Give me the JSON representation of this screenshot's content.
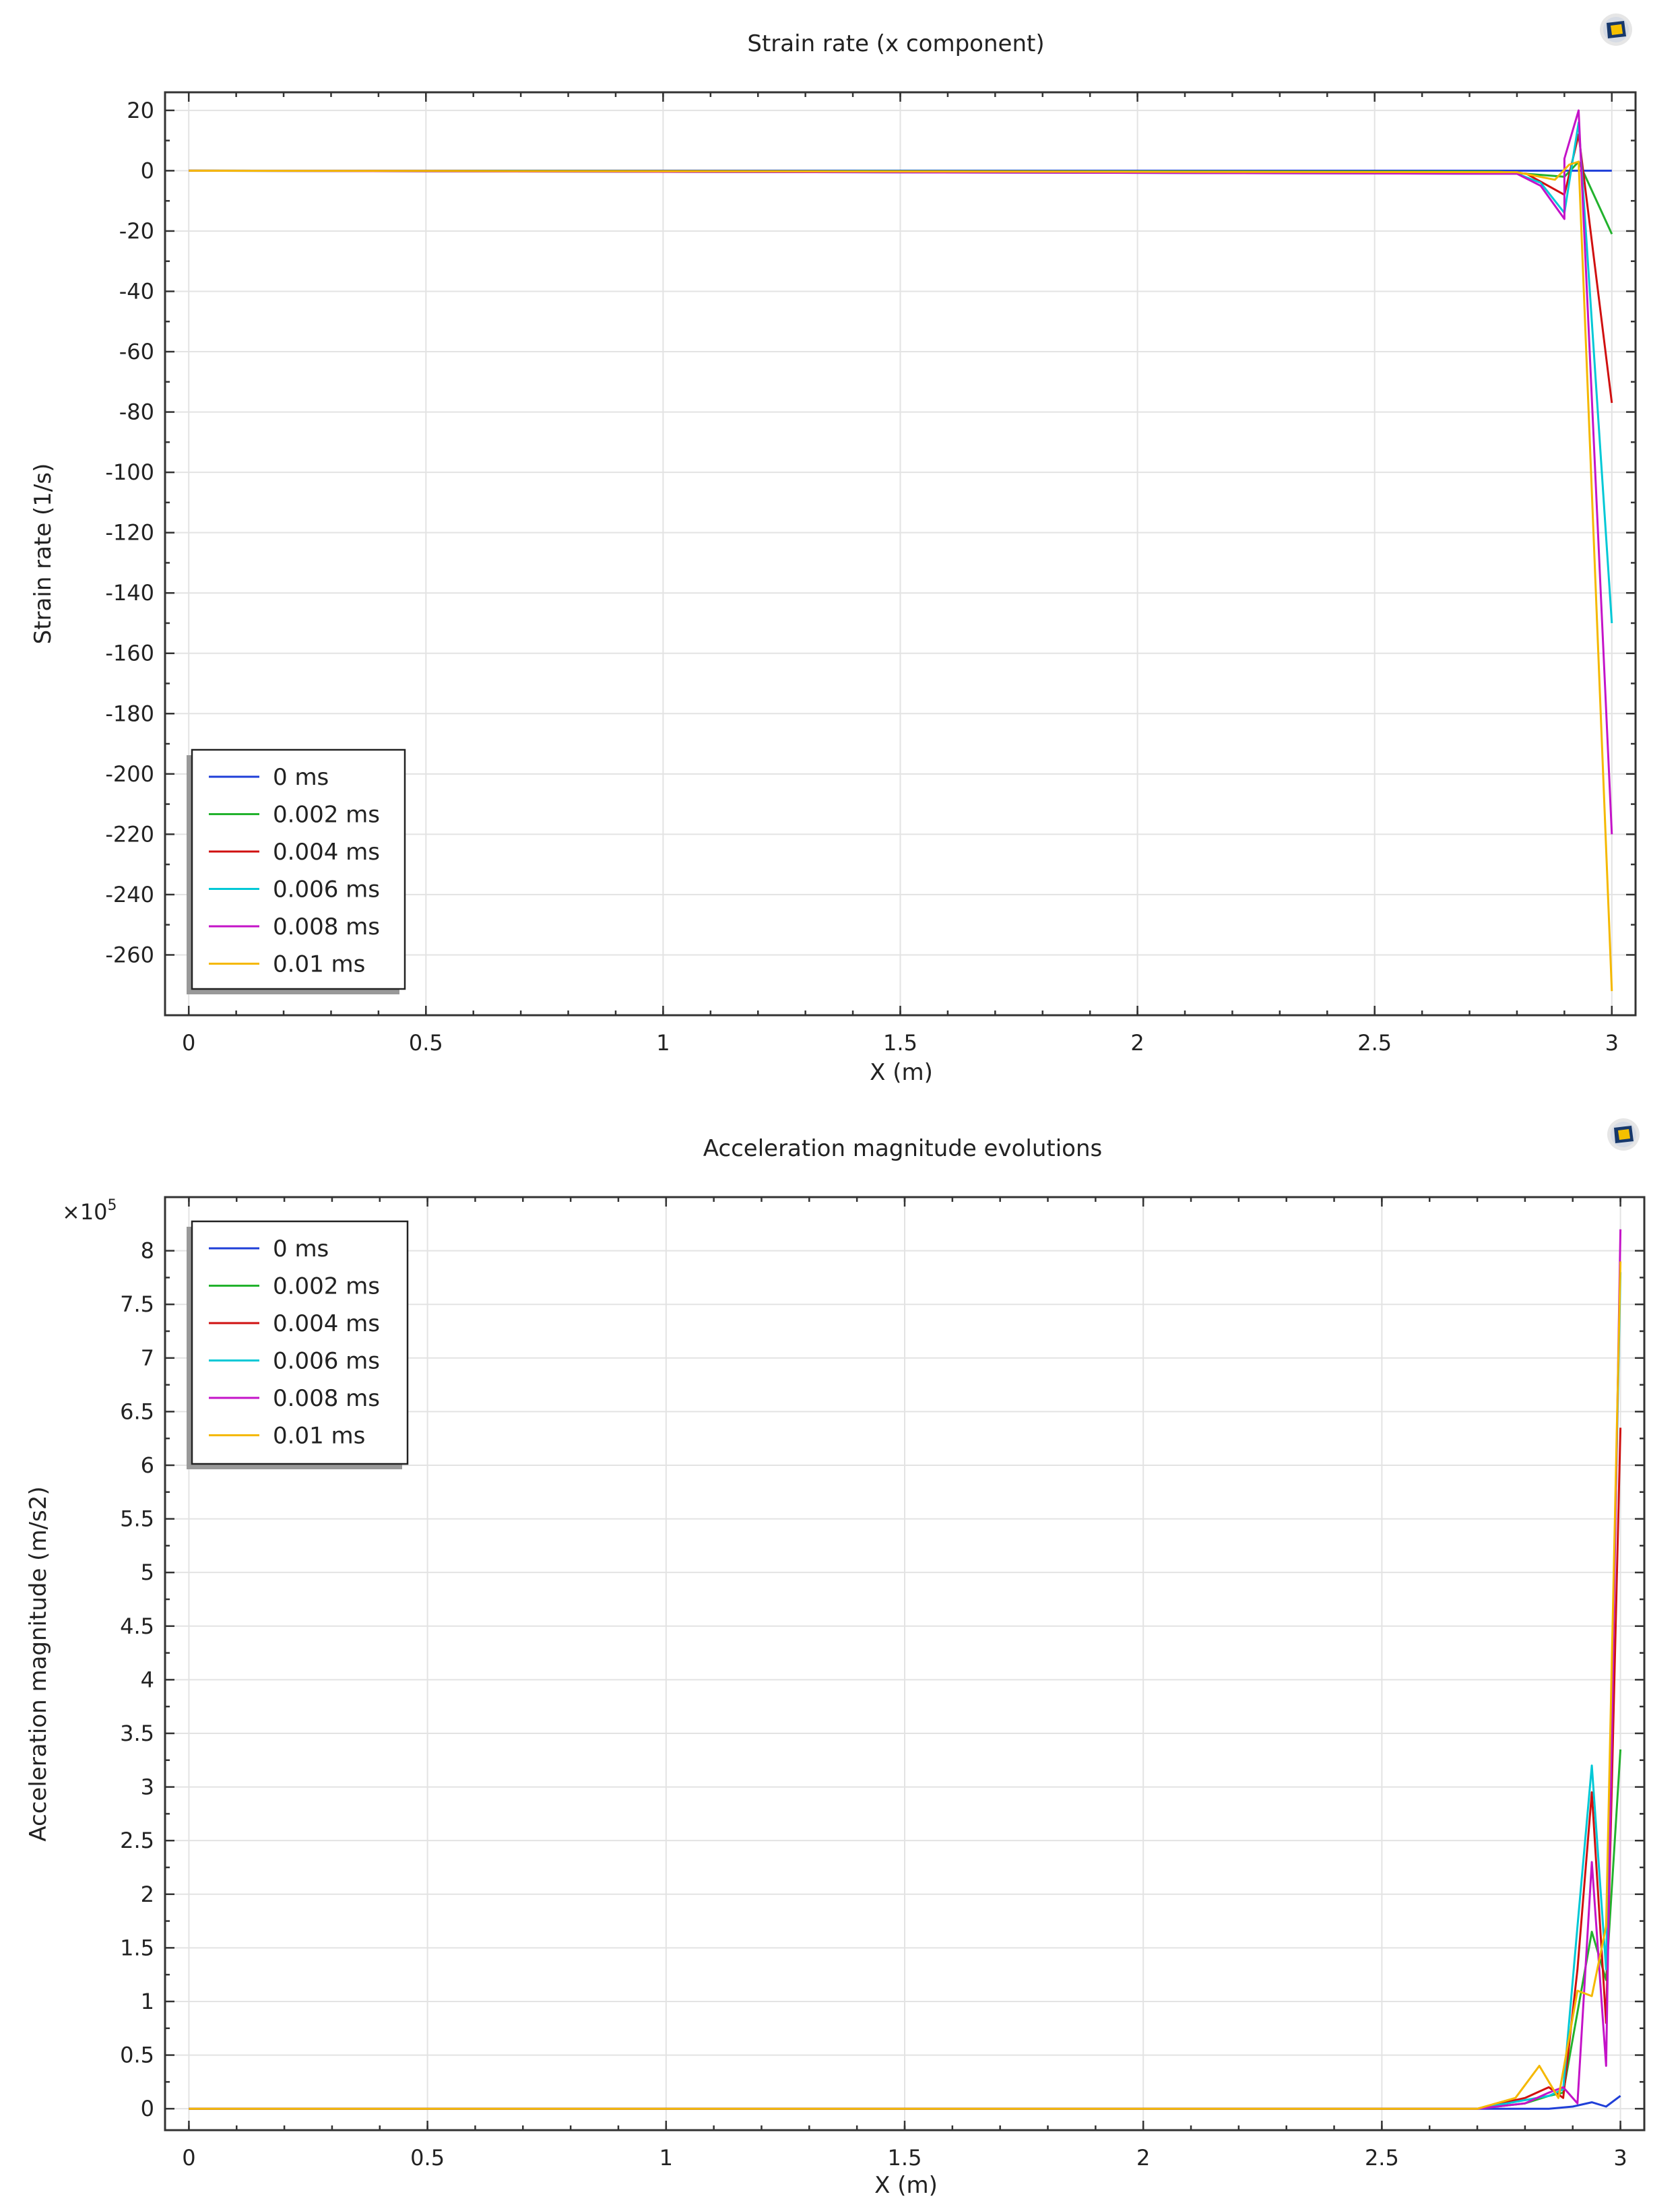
{
  "window": {
    "icon_name": "comsol-logo-icon"
  },
  "chart_data": [
    {
      "type": "line",
      "title": "Strain rate (x component)",
      "xlabel": "X (m)",
      "ylabel": "Strain rate (1/s)",
      "xlim": [
        -0.05,
        3.05
      ],
      "ylim": [
        -280,
        26
      ],
      "xticks": [
        0,
        0.5,
        1,
        1.5,
        2,
        2.5,
        3
      ],
      "xtick_labels": [
        "0",
        "0.5",
        "1",
        "1.5",
        "2",
        "2.5",
        "3"
      ],
      "yticks": [
        20,
        0,
        -20,
        -40,
        -60,
        -80,
        -100,
        -120,
        -140,
        -160,
        -180,
        -200,
        -220,
        -240,
        -260
      ],
      "ytick_labels": [
        "20",
        "0",
        "-20",
        "-40",
        "-60",
        "-80",
        "-100",
        "-120",
        "-140",
        "-160",
        "-180",
        "-200",
        "-220",
        "-240",
        "-260"
      ],
      "grid": true,
      "legend_position": "bottom-left",
      "series": [
        {
          "name": "0 ms",
          "color": "#1f3fd8",
          "x": [
            0,
            2.7,
            3.0
          ],
          "y": [
            0,
            0,
            0
          ]
        },
        {
          "name": "0.002 ms",
          "color": "#22b22d",
          "x": [
            0,
            2.76,
            2.9,
            2.93,
            3.0
          ],
          "y": [
            0,
            -0.3,
            -2,
            3,
            -21
          ]
        },
        {
          "name": "0.004 ms",
          "color": "#d01010",
          "x": [
            0,
            2.78,
            2.82,
            2.9,
            2.93,
            3.0
          ],
          "y": [
            0,
            -0.5,
            -1,
            -8,
            12,
            -77
          ]
        },
        {
          "name": "0.006 ms",
          "color": "#00c8d6",
          "x": [
            0,
            2.8,
            2.85,
            2.9,
            2.93,
            3.0
          ],
          "y": [
            0,
            -1,
            -4,
            -14,
            16,
            -150
          ]
        },
        {
          "name": "0.008 ms",
          "color": "#c413c8",
          "x": [
            0,
            2.8,
            2.85,
            2.9,
            2.9,
            2.93,
            3.0
          ],
          "y": [
            0,
            -1,
            -5,
            -16,
            4,
            20,
            -220
          ]
        },
        {
          "name": "0.01 ms",
          "color": "#f5b800",
          "x": [
            0,
            2.8,
            2.88,
            2.91,
            2.93,
            3.0
          ],
          "y": [
            0,
            -0.5,
            -3,
            2,
            3,
            -272
          ]
        }
      ]
    },
    {
      "type": "line",
      "title": "Acceleration magnitude evolutions",
      "xlabel": "X (m)",
      "ylabel": "Acceleration magnitude (m/s2)",
      "axis_multiplier": "×10",
      "axis_multiplier_exp": "5",
      "xlim": [
        -0.05,
        3.05
      ],
      "ylim": [
        -0.2,
        8.5
      ],
      "xticks": [
        0,
        0.5,
        1,
        1.5,
        2,
        2.5,
        3
      ],
      "xtick_labels": [
        "0",
        "0.5",
        "1",
        "1.5",
        "2",
        "2.5",
        "3"
      ],
      "yticks": [
        0,
        0.5,
        1,
        1.5,
        2,
        2.5,
        3,
        3.5,
        4,
        4.5,
        5,
        5.5,
        6,
        6.5,
        7,
        7.5,
        8
      ],
      "ytick_labels": [
        "0",
        "0.5",
        "1",
        "1.5",
        "2",
        "2.5",
        "3",
        "3.5",
        "4",
        "4.5",
        "5",
        "5.5",
        "6",
        "6.5",
        "7",
        "7.5",
        "8"
      ],
      "grid": true,
      "legend_position": "top-left",
      "series": [
        {
          "name": "0 ms",
          "color": "#1f3fd8",
          "x": [
            0,
            2.7,
            2.85,
            2.9,
            2.94,
            2.97,
            3.0
          ],
          "y": [
            0,
            0,
            0,
            0.02,
            0.06,
            0.02,
            0.12
          ]
        },
        {
          "name": "0.002 ms",
          "color": "#22b22d",
          "x": [
            0,
            2.7,
            2.8,
            2.85,
            2.88,
            2.91,
            2.94,
            2.97,
            3.0
          ],
          "y": [
            0,
            0,
            0.05,
            0.12,
            0.15,
            0.9,
            1.65,
            1.2,
            3.35
          ]
        },
        {
          "name": "0.004 ms",
          "color": "#d01010",
          "x": [
            0,
            2.7,
            2.8,
            2.85,
            2.88,
            2.91,
            2.94,
            2.97,
            3.0
          ],
          "y": [
            0,
            0,
            0.1,
            0.2,
            0.1,
            1.3,
            2.95,
            0.8,
            6.35
          ]
        },
        {
          "name": "0.006 ms",
          "color": "#00c8d6",
          "x": [
            0,
            2.7,
            2.8,
            2.85,
            2.88,
            2.91,
            2.94,
            2.97,
            3.0
          ],
          "y": [
            0,
            0,
            0.08,
            0.12,
            0.18,
            1.7,
            3.2,
            1.3,
            7.8
          ]
        },
        {
          "name": "0.008 ms",
          "color": "#c413c8",
          "x": [
            0,
            2.7,
            2.8,
            2.85,
            2.88,
            2.91,
            2.94,
            2.97,
            3.0
          ],
          "y": [
            0,
            0,
            0.05,
            0.15,
            0.2,
            0.05,
            2.3,
            0.4,
            8.2
          ]
        },
        {
          "name": "0.01 ms",
          "color": "#f5b800",
          "x": [
            0,
            2.7,
            2.78,
            2.83,
            2.87,
            2.91,
            2.94,
            2.97,
            3.0
          ],
          "y": [
            0,
            0,
            0.1,
            0.4,
            0.1,
            1.1,
            1.05,
            1.7,
            7.9
          ]
        }
      ]
    }
  ]
}
